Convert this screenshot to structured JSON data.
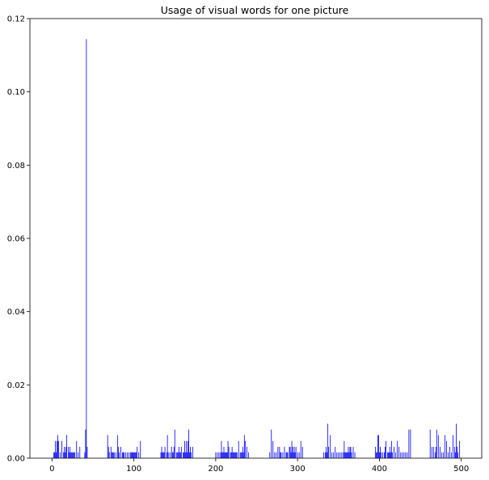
{
  "chart_data": {
    "type": "bar",
    "title": "Usage of visual words for one picture",
    "xlabel": "",
    "ylabel": "",
    "xlim": [
      -27,
      525
    ],
    "ylim": [
      0,
      0.12
    ],
    "xticks": [
      0,
      100,
      200,
      300,
      400,
      500
    ],
    "yticks": [
      0.0,
      0.02,
      0.04,
      0.06,
      0.08,
      0.1,
      0.12
    ],
    "xtick_labels": [
      "0",
      "100",
      "200",
      "300",
      "400",
      "500"
    ],
    "ytick_labels": [
      "0.00",
      "0.02",
      "0.04",
      "0.06",
      "0.08",
      "0.10",
      "0.12"
    ],
    "grid": false,
    "bar_color": "#0000ff",
    "x": [
      2,
      3,
      4,
      5,
      6,
      7,
      8,
      10,
      12,
      14,
      15,
      16,
      17,
      18,
      20,
      21,
      22,
      23,
      24,
      25,
      26,
      27,
      28,
      30,
      32,
      34,
      40,
      41,
      42,
      43,
      68,
      69,
      70,
      72,
      73,
      74,
      75,
      76,
      78,
      80,
      81,
      82,
      84,
      86,
      87,
      88,
      90,
      92,
      94,
      96,
      97,
      98,
      99,
      100,
      101,
      102,
      103,
      104,
      106,
      108,
      133,
      134,
      135,
      136,
      137,
      138,
      140,
      141,
      142,
      144,
      146,
      147,
      148,
      149,
      150,
      152,
      153,
      154,
      155,
      156,
      157,
      158,
      160,
      161,
      162,
      163,
      164,
      165,
      166,
      167,
      168,
      169,
      170,
      172,
      200,
      202,
      204,
      206,
      207,
      208,
      209,
      210,
      211,
      212,
      213,
      214,
      215,
      216,
      218,
      219,
      220,
      221,
      222,
      223,
      224,
      225,
      226,
      228,
      230,
      231,
      232,
      233,
      234,
      235,
      236,
      238,
      240,
      266,
      268,
      270,
      272,
      274,
      276,
      278,
      279,
      280,
      282,
      284,
      286,
      287,
      288,
      290,
      291,
      292,
      293,
      294,
      295,
      296,
      297,
      298,
      300,
      302,
      304,
      306,
      332,
      334,
      335,
      336,
      337,
      338,
      340,
      342,
      344,
      346,
      348,
      350,
      352,
      354,
      356,
      357,
      358,
      359,
      360,
      361,
      362,
      363,
      364,
      365,
      366,
      368,
      370,
      395,
      396,
      397,
      398,
      399,
      400,
      401,
      402,
      404,
      406,
      407,
      408,
      410,
      411,
      412,
      413,
      414,
      415,
      416,
      418,
      420,
      422,
      424,
      426,
      428,
      430,
      432,
      434,
      436,
      438,
      462,
      464,
      466,
      468,
      469,
      470,
      472,
      474,
      476,
      478,
      480,
      482,
      484,
      486,
      488,
      490,
      492,
      493,
      494,
      495,
      496,
      498
    ],
    "values": [
      0.0016,
      0.0016,
      0.0047,
      0.0016,
      0.0047,
      0.0063,
      0.0047,
      0.0016,
      0.0047,
      0.0016,
      0.0031,
      0.0016,
      0.0031,
      0.0063,
      0.0031,
      0.0016,
      0.0031,
      0.0016,
      0.0016,
      0.0016,
      0.0016,
      0.0016,
      0.0016,
      0.0047,
      0.0016,
      0.0031,
      0.0016,
      0.0078,
      0.1144,
      0.0031,
      0.0063,
      0.0031,
      0.0016,
      0.0031,
      0.0016,
      0.0016,
      0.0016,
      0.0016,
      0.0016,
      0.0063,
      0.0031,
      0.0016,
      0.0031,
      0.0016,
      0.0016,
      0.0016,
      0.0016,
      0.0016,
      0.0016,
      0.0016,
      0.0016,
      0.0016,
      0.0016,
      0.0016,
      0.0016,
      0.0016,
      0.0016,
      0.0031,
      0.0016,
      0.0047,
      0.0016,
      0.0031,
      0.0016,
      0.0016,
      0.0016,
      0.0031,
      0.0016,
      0.0063,
      0.0016,
      0.0016,
      0.0031,
      0.0016,
      0.0016,
      0.0031,
      0.0078,
      0.0016,
      0.0016,
      0.0016,
      0.0031,
      0.0016,
      0.0016,
      0.0031,
      0.0016,
      0.0016,
      0.0047,
      0.0016,
      0.0047,
      0.0016,
      0.0047,
      0.0078,
      0.0016,
      0.0031,
      0.0016,
      0.0031,
      0.0016,
      0.0016,
      0.0016,
      0.0016,
      0.0047,
      0.0016,
      0.0016,
      0.0031,
      0.0016,
      0.0016,
      0.0016,
      0.0016,
      0.0047,
      0.0031,
      0.0016,
      0.0016,
      0.0031,
      0.0016,
      0.0016,
      0.0016,
      0.0016,
      0.0016,
      0.0016,
      0.0047,
      0.0016,
      0.0016,
      0.0016,
      0.0031,
      0.0016,
      0.0063,
      0.0047,
      0.0031,
      0.0016,
      0.0016,
      0.0078,
      0.0047,
      0.0016,
      0.0016,
      0.0031,
      0.0031,
      0.0016,
      0.0016,
      0.0016,
      0.0031,
      0.0016,
      0.0016,
      0.0016,
      0.0031,
      0.0031,
      0.0016,
      0.0047,
      0.0031,
      0.0016,
      0.0031,
      0.0016,
      0.0031,
      0.0016,
      0.0016,
      0.0047,
      0.0031,
      0.0016,
      0.0016,
      0.0031,
      0.0016,
      0.0094,
      0.0031,
      0.0063,
      0.0016,
      0.0016,
      0.0031,
      0.0016,
      0.0016,
      0.0016,
      0.0016,
      0.0016,
      0.0047,
      0.0016,
      0.0016,
      0.0016,
      0.0016,
      0.0031,
      0.0016,
      0.0031,
      0.0031,
      0.0016,
      0.0031,
      0.0016,
      0.0031,
      0.0016,
      0.0016,
      0.0063,
      0.0063,
      0.0016,
      0.0031,
      0.0016,
      0.0016,
      0.0016,
      0.0031,
      0.0047,
      0.0016,
      0.0016,
      0.0016,
      0.0031,
      0.0016,
      0.0047,
      0.0016,
      0.0031,
      0.0016,
      0.0047,
      0.0031,
      0.0016,
      0.0016,
      0.0016,
      0.0016,
      0.0016,
      0.0078,
      0.0078,
      0.0078,
      0.0031,
      0.0031,
      0.0016,
      0.0031,
      0.0078,
      0.0063,
      0.0031,
      0.0016,
      0.0016,
      0.0063,
      0.0047,
      0.0016,
      0.0031,
      0.0016,
      0.0063,
      0.0031,
      0.0016,
      0.0094,
      0.0031,
      0.0016,
      0.0047
    ]
  }
}
